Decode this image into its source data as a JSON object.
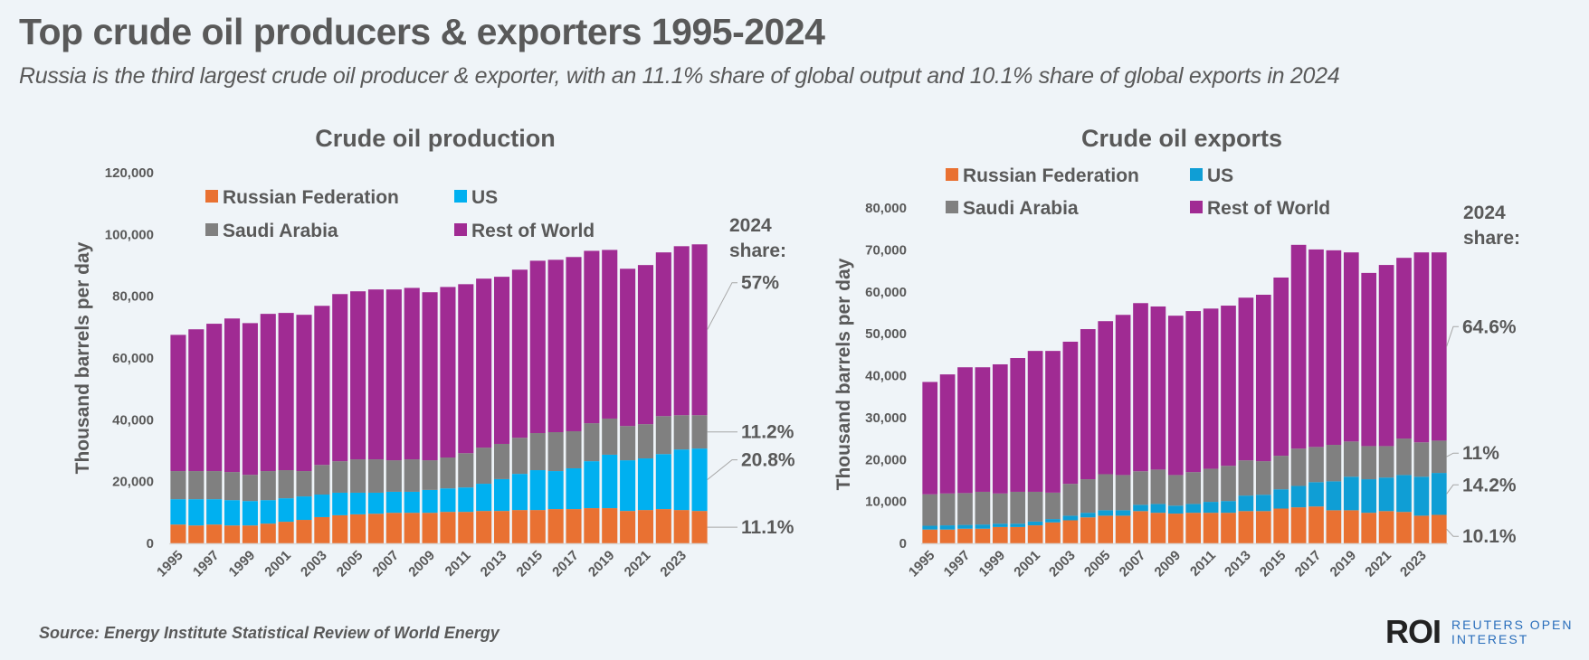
{
  "header": {
    "title": "Top crude oil producers & exporters 1995-2024",
    "subtitle": "Russia is the third largest crude oil producer & exporter, with an 11.1% share of global output and 10.1% share of global exports in 2024"
  },
  "footer": {
    "source": "Source: Energy Institute Statistical Review of World Energy",
    "logo_mark": "ROI",
    "logo_line1": "REUTERS OPEN",
    "logo_line2": "INTEREST"
  },
  "colors": {
    "russia": "#e97132",
    "us_production": "#00b0f0",
    "us_exports": "#0f9ed5",
    "saudi": "#808080",
    "rest": "#a02b93"
  },
  "chart_data": [
    {
      "type": "bar",
      "stacked": true,
      "title": "Crude oil production",
      "xlabel": "",
      "ylabel": "Thousand barrels per day",
      "ylim": [
        0,
        120000
      ],
      "yticks": [
        0,
        20000,
        40000,
        60000,
        80000,
        100000,
        120000
      ],
      "ytick_labels": [
        "0",
        "20,000",
        "40,000",
        "60,000",
        "80,000",
        "100,000",
        "120,000"
      ],
      "categories": [
        "1995",
        "1996",
        "1997",
        "1998",
        "1999",
        "2000",
        "2001",
        "2002",
        "2003",
        "2004",
        "2005",
        "2006",
        "2007",
        "2008",
        "2009",
        "2010",
        "2011",
        "2012",
        "2013",
        "2014",
        "2015",
        "2016",
        "2017",
        "2018",
        "2019",
        "2020",
        "2021",
        "2022",
        "2023",
        "2024"
      ],
      "xtick_labels": [
        "1995",
        "1997",
        "1999",
        "2001",
        "2003",
        "2005",
        "2007",
        "2009",
        "2011",
        "2013",
        "2015",
        "2017",
        "2019",
        "2021",
        "2023"
      ],
      "legend": [
        "Russian Federation",
        "US",
        "Saudi Arabia",
        "Rest of World"
      ],
      "legend_position": "top",
      "series": [
        {
          "name": "Russian Federation",
          "values": [
            6100,
            5800,
            6100,
            5800,
            5800,
            6400,
            7000,
            7600,
            8500,
            9100,
            9400,
            9600,
            9900,
            9900,
            9900,
            10200,
            10200,
            10500,
            10500,
            10800,
            10800,
            11100,
            11100,
            11400,
            11400,
            10500,
            10800,
            11100,
            10800,
            10500
          ]
        },
        {
          "name": "US",
          "values": [
            8200,
            8500,
            8200,
            8200,
            7900,
            7600,
            7600,
            7600,
            7300,
            7300,
            7000,
            6800,
            6800,
            6800,
            7400,
            7600,
            7900,
            8800,
            10300,
            11700,
            12900,
            12300,
            13200,
            15200,
            17300,
            16400,
            16700,
            17800,
            19600,
            20200
          ]
        },
        {
          "name": "Saudi Arabia",
          "values": [
            9100,
            9100,
            9100,
            9100,
            8500,
            9400,
            9100,
            8200,
            9600,
            10200,
            10800,
            10800,
            10200,
            10500,
            9600,
            10000,
            11100,
            11700,
            11400,
            11700,
            12000,
            12600,
            12000,
            12300,
            11700,
            11100,
            11100,
            12300,
            11100,
            10800
          ]
        },
        {
          "name": "Rest of World",
          "values": [
            44100,
            45900,
            47700,
            49700,
            49100,
            50900,
            50900,
            50600,
            51500,
            54100,
            54400,
            55000,
            55300,
            55500,
            54400,
            55200,
            54700,
            54700,
            54100,
            54400,
            55800,
            55800,
            56400,
            55800,
            54600,
            50900,
            51500,
            53000,
            54700,
            55300
          ]
        }
      ],
      "annotation_header": "2024 share:",
      "annotation_header_line1": "2024",
      "annotation_header_line2": "share:",
      "share_2024": {
        "Rest of World": "57%",
        "Saudi Arabia": "11.2%",
        "US": "20.8%",
        "Russian Federation": "11.1%"
      }
    },
    {
      "type": "bar",
      "stacked": true,
      "title": "Crude oil exports",
      "xlabel": "",
      "ylabel": "Thousand barrels per day",
      "ylim": [
        0,
        80000
      ],
      "yticks": [
        0,
        10000,
        20000,
        30000,
        40000,
        50000,
        60000,
        70000,
        80000
      ],
      "ytick_labels": [
        "0",
        "10,000",
        "20,000",
        "30,000",
        "40,000",
        "50,000",
        "60,000",
        "70,000",
        "80,000"
      ],
      "categories": [
        "1995",
        "1996",
        "1997",
        "1998",
        "1999",
        "2000",
        "2001",
        "2002",
        "2003",
        "2004",
        "2005",
        "2006",
        "2007",
        "2008",
        "2009",
        "2010",
        "2011",
        "2012",
        "2013",
        "2014",
        "2015",
        "2016",
        "2017",
        "2018",
        "2019",
        "2020",
        "2021",
        "2022",
        "2023",
        "2024"
      ],
      "xtick_labels": [
        "1995",
        "1997",
        "1999",
        "2001",
        "2003",
        "2005",
        "2007",
        "2009",
        "2011",
        "2013",
        "2015",
        "2017",
        "2019",
        "2021",
        "2023"
      ],
      "legend": [
        "Russian Federation",
        "US",
        "Saudi Arabia",
        "Rest of World"
      ],
      "legend_position": "top",
      "series": [
        {
          "name": "Russian Federation",
          "values": [
            3300,
            3300,
            3500,
            3500,
            3900,
            3900,
            4300,
            5000,
            5500,
            6200,
            6600,
            6600,
            7700,
            7300,
            7100,
            7300,
            7300,
            7300,
            7700,
            7700,
            8300,
            8600,
            8800,
            7900,
            7900,
            7300,
            7700,
            7500,
            6600,
            6800
          ]
        },
        {
          "name": "US",
          "values": [
            900,
            1000,
            900,
            1000,
            800,
            800,
            900,
            800,
            1100,
            1100,
            1300,
            1300,
            1500,
            2100,
            1900,
            2100,
            2600,
            2800,
            3700,
            3900,
            4600,
            5100,
            5800,
            6900,
            8000,
            8000,
            8000,
            8800,
            9300,
            10000
          ]
        },
        {
          "name": "Saudi Arabia",
          "values": [
            7500,
            7600,
            7600,
            7800,
            7200,
            7600,
            7100,
            6300,
            7600,
            8000,
            8600,
            8400,
            8000,
            8200,
            7300,
            7600,
            7900,
            8400,
            8400,
            8000,
            8000,
            8900,
            8400,
            8700,
            8400,
            7900,
            7500,
            8700,
            8200,
            7700
          ]
        },
        {
          "name": "Rest of World",
          "values": [
            26800,
            28400,
            30000,
            29700,
            30800,
            31900,
            33600,
            33800,
            33900,
            35800,
            36500,
            38200,
            40100,
            38900,
            38000,
            38400,
            38200,
            38200,
            38800,
            39700,
            42500,
            48600,
            47100,
            46400,
            45100,
            41300,
            43200,
            43100,
            45300,
            44900
          ]
        }
      ],
      "annotation_header_line1": "2024",
      "annotation_header_line2": "share:",
      "share_2024": {
        "Rest of World": "64.6%",
        "Saudi Arabia": "11%",
        "US": "14.2%",
        "Russian Federation": "10.1%"
      }
    }
  ]
}
